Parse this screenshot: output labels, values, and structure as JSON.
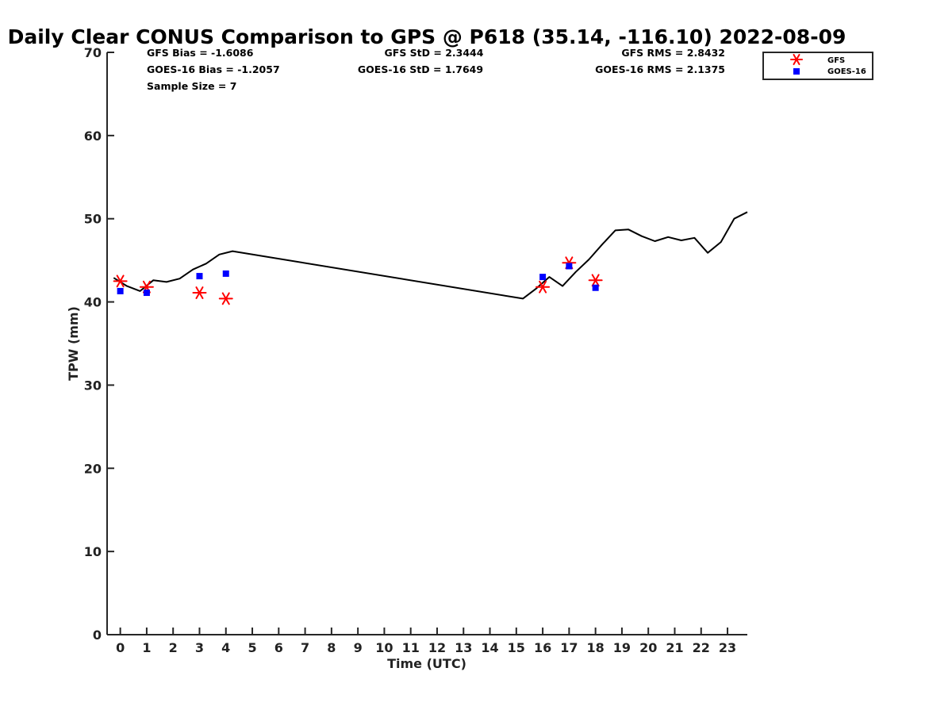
{
  "chart_data": {
    "type": "line",
    "title": "Daily Clear CONUS Comparison to GPS @ P618 (35.14, -116.10) 2022-08-09",
    "xlabel": "Time (UTC)",
    "ylabel": "TPW (mm)",
    "xlim": [
      -0.5,
      23.75
    ],
    "ylim": [
      0,
      70
    ],
    "x_ticks": [
      0,
      1,
      2,
      3,
      4,
      5,
      6,
      7,
      8,
      9,
      10,
      11,
      12,
      13,
      14,
      15,
      16,
      17,
      18,
      19,
      20,
      21,
      22,
      23
    ],
    "y_ticks": [
      0,
      10,
      20,
      30,
      40,
      50,
      60,
      70
    ],
    "grid": false,
    "legend_position": "top-right",
    "stats": {
      "gfs_bias": "GFS Bias = -1.6086",
      "goes_bias": "GOES-16 Bias = -1.2057",
      "sample_size": "Sample Size = 7",
      "gfs_std": "GFS StD = 2.3444",
      "goes_std": "GOES-16 StD = 1.7649",
      "gfs_rms": "GFS RMS = 2.8432",
      "goes_rms": "GOES-16 RMS = 2.1375"
    },
    "series": [
      {
        "kind": "line",
        "color": "#000000",
        "x": [
          -0.25,
          0.25,
          0.75,
          1.25,
          1.75,
          2.25,
          2.75,
          3.25,
          3.75,
          4.25,
          15.25,
          15.75,
          16.25,
          16.75,
          17.25,
          17.75,
          18.25,
          18.75,
          19.25,
          19.75,
          20.25,
          20.75,
          21.25,
          21.75,
          22.25,
          22.75,
          23.25,
          23.75
        ],
        "y": [
          42.9,
          41.9,
          41.3,
          42.6,
          42.4,
          42.8,
          43.9,
          44.6,
          45.7,
          46.1,
          40.4,
          41.6,
          43.0,
          41.9,
          43.6,
          45.1,
          46.9,
          48.6,
          48.7,
          47.9,
          47.3,
          47.8,
          47.4,
          47.7,
          45.9,
          47.2,
          50.0,
          50.8
        ]
      },
      {
        "name": "GFS",
        "kind": "scatter",
        "marker": "asterisk",
        "color": "#ff0000",
        "x": [
          0,
          1,
          3,
          4,
          16,
          17,
          18
        ],
        "y": [
          42.5,
          41.8,
          41.1,
          40.4,
          41.8,
          44.7,
          42.6
        ]
      },
      {
        "name": "GOES-16",
        "kind": "scatter",
        "marker": "square",
        "color": "#0000ff",
        "x": [
          0,
          1,
          3,
          4,
          16,
          17,
          18
        ],
        "y": [
          41.3,
          41.1,
          43.1,
          43.4,
          43.0,
          44.3,
          41.7
        ]
      }
    ]
  }
}
